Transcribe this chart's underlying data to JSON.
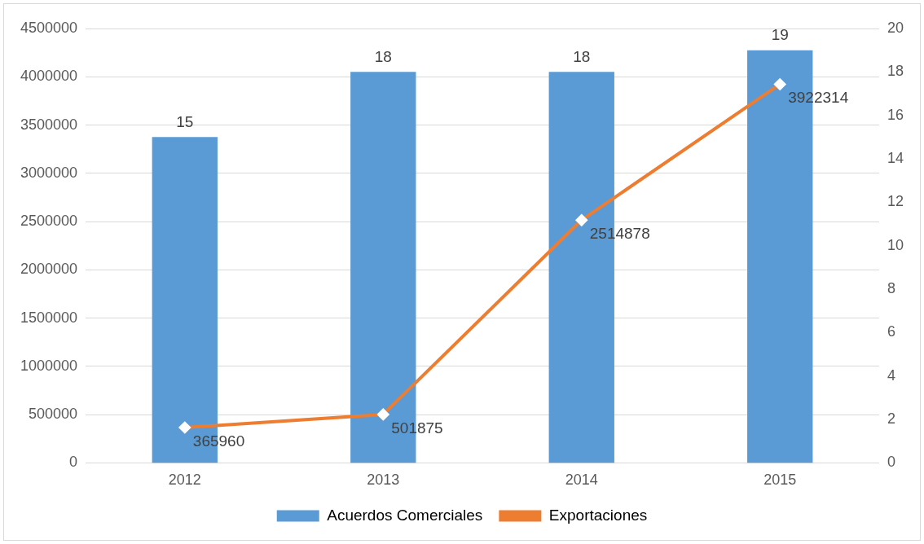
{
  "chart_data": {
    "type": "bar",
    "categories": [
      "2012",
      "2013",
      "2014",
      "2015"
    ],
    "series": [
      {
        "name": "Acuerdos Comerciales",
        "axis": "y2",
        "color": "#5b9bd5",
        "values": [
          15,
          18,
          18,
          19
        ]
      },
      {
        "name": "Exportaciones",
        "type": "line",
        "color": "#ed7d31",
        "values": [
          365960,
          501875,
          2514878,
          3922314
        ]
      }
    ],
    "ylim": [
      0,
      4500000
    ],
    "yticks": [
      0,
      500000,
      1000000,
      1500000,
      2000000,
      2500000,
      3000000,
      3500000,
      4000000,
      4500000
    ],
    "y2lim": [
      0,
      20
    ],
    "y2ticks": [
      0,
      2,
      4,
      6,
      8,
      10,
      12,
      14,
      16,
      18,
      20
    ],
    "grid": "y",
    "legend": "bottom",
    "data_labels": true,
    "marker": "diamond",
    "line_style": "solid"
  }
}
